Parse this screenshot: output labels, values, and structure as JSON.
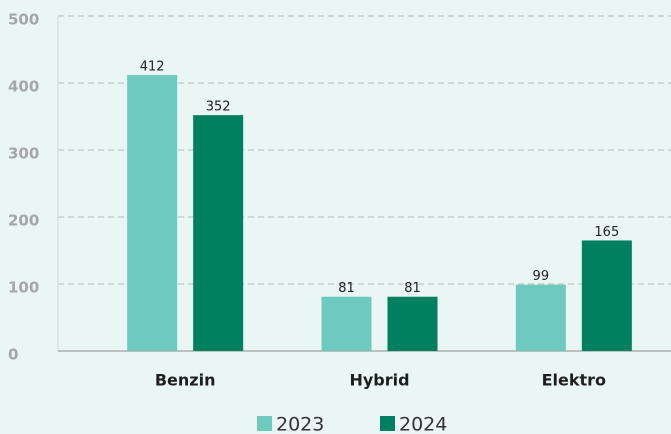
{
  "chart_data": {
    "type": "bar",
    "categories": [
      "Benzin",
      "Hybrid",
      "Elektro"
    ],
    "series": [
      {
        "name": "2023",
        "color": "#6ecabe",
        "values": [
          412,
          81,
          99
        ]
      },
      {
        "name": "2024",
        "color": "#00805e",
        "values": [
          352,
          81,
          165
        ]
      }
    ],
    "ylim": [
      0,
      500
    ],
    "yticks": [
      0,
      100,
      200,
      300,
      400,
      500
    ],
    "grid": true,
    "legend": "bottom"
  }
}
